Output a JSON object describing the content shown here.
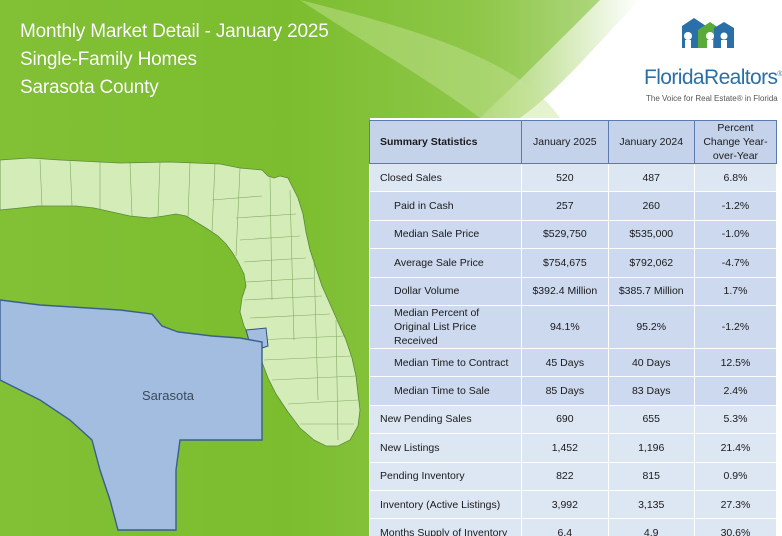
{
  "header": {
    "line1": "Monthly Market Detail - January 2025",
    "line2": "Single-Family Homes",
    "line3": "Sarasota County"
  },
  "logo": {
    "brand_part1": "Florida",
    "brand_part2": "Realtors",
    "registered": "®",
    "tagline": "The Voice for Real Estate® in Florida"
  },
  "map": {
    "county_label": "Sarasota",
    "county_color": "#a3bde0",
    "state_color": "#d4ecb8"
  },
  "table": {
    "headers": [
      "Summary Statistics",
      "January 2025",
      "January 2024",
      "Percent Change Year-over-Year"
    ],
    "rows": [
      {
        "label": "Closed Sales",
        "cur": "520",
        "prev": "487",
        "chg": "6.8%"
      },
      {
        "label": "Paid in Cash",
        "cur": "257",
        "prev": "260",
        "chg": "-1.2%"
      },
      {
        "label": "Median Sale Price",
        "cur": "$529,750",
        "prev": "$535,000",
        "chg": "-1.0%"
      },
      {
        "label": "Average Sale Price",
        "cur": "$754,675",
        "prev": "$792,062",
        "chg": "-4.7%"
      },
      {
        "label": "Dollar Volume",
        "cur": "$392.4 Million",
        "prev": "$385.7 Million",
        "chg": "1.7%"
      },
      {
        "label": "Median Percent of Original List Price Received",
        "cur": "94.1%",
        "prev": "95.2%",
        "chg": "-1.2%"
      },
      {
        "label": "Median Time to Contract",
        "cur": "45 Days",
        "prev": "40 Days",
        "chg": "12.5%"
      },
      {
        "label": "Median Time to Sale",
        "cur": "85 Days",
        "prev": "83 Days",
        "chg": "2.4%"
      },
      {
        "label": "New Pending Sales",
        "cur": "690",
        "prev": "655",
        "chg": "5.3%"
      },
      {
        "label": "New Listings",
        "cur": "1,452",
        "prev": "1,196",
        "chg": "21.4%"
      },
      {
        "label": "Pending Inventory",
        "cur": "822",
        "prev": "815",
        "chg": "0.9%"
      },
      {
        "label": "Inventory (Active Listings)",
        "cur": "3,992",
        "prev": "3,135",
        "chg": "27.3%"
      },
      {
        "label": "Months Supply of Inventory",
        "cur": "6.4",
        "prev": "4.9",
        "chg": "30.6%"
      }
    ]
  }
}
